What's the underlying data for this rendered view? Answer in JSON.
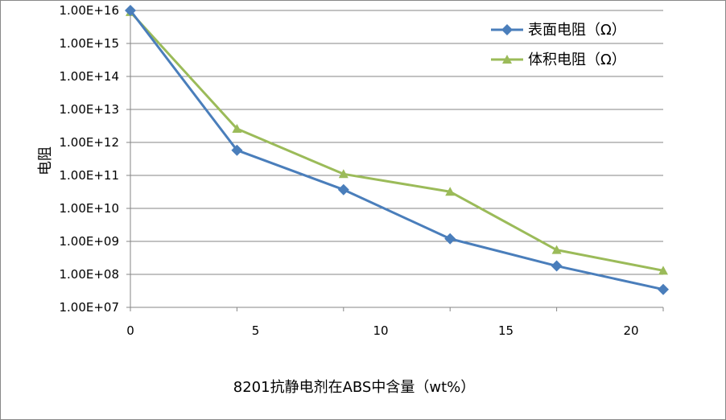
{
  "chart_data": {
    "type": "line",
    "title": "",
    "xlabel": "8201抗静电剂在ABS中含量（wt%）",
    "ylabel": "电阻",
    "x_ticks": [
      "0",
      "5",
      "10",
      "15",
      "20"
    ],
    "y_ticks": [
      "1.00E+07",
      "1.00E+08",
      "1.00E+09",
      "1.00E+10",
      "1.00E+11",
      "1.00E+12",
      "1.00E+13",
      "1.00E+14",
      "1.00E+15",
      "1.00E+16"
    ],
    "y_scale": "log",
    "xlim": [
      0,
      21
    ],
    "ylim": [
      10000000.0,
      1e+16
    ],
    "grid": "horizontal",
    "legend_position": "top-right",
    "series": [
      {
        "name": "表面电阻（Ω）",
        "color": "#4a7ebb",
        "marker": "diamond",
        "x": [
          0,
          4.2,
          8.4,
          12.6,
          16.8,
          21
        ],
        "y": [
          1e+16,
          580000000000.0,
          37000000000.0,
          1200000000.0,
          180000000.0,
          35000000.0
        ]
      },
      {
        "name": "体积电阻（Ω）",
        "color": "#9bbb59",
        "marker": "triangle",
        "x": [
          0,
          4.2,
          8.4,
          12.6,
          16.8,
          21
        ],
        "y": [
          9000000000000000.0,
          2600000000000.0,
          110000000000.0,
          32000000000.0,
          550000000.0,
          130000000.0
        ]
      }
    ]
  }
}
